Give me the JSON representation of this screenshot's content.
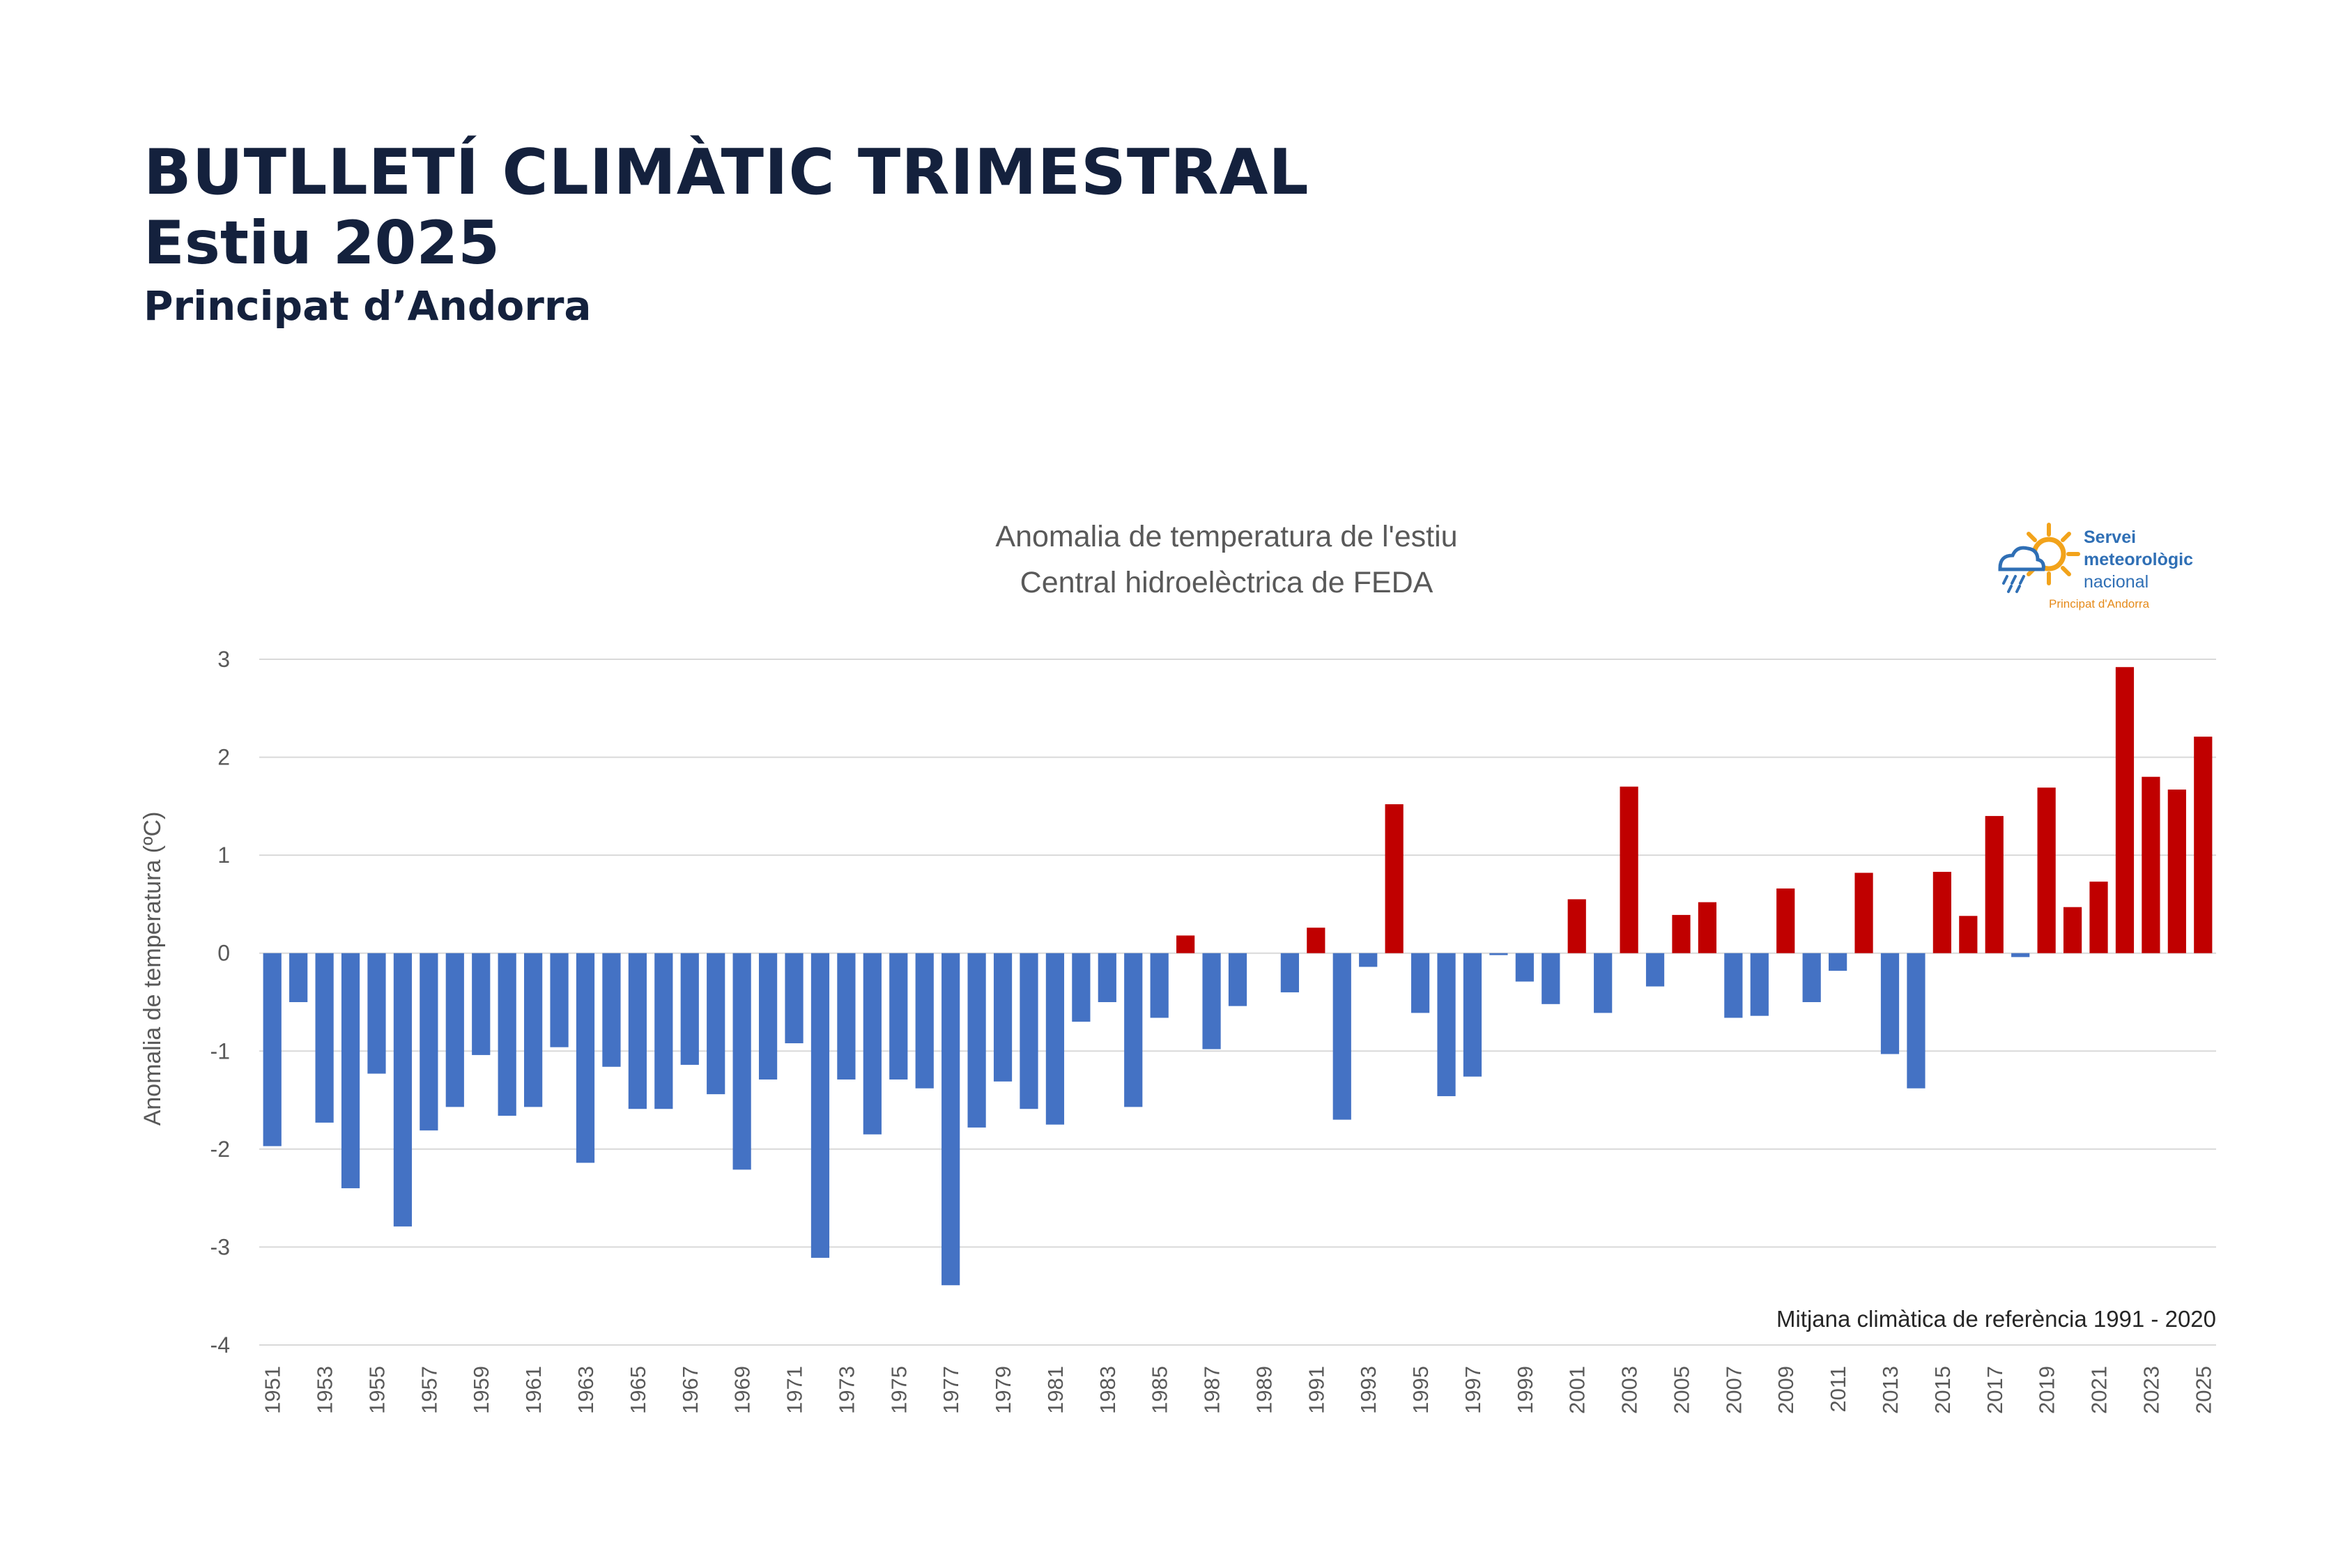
{
  "header": {
    "title": "BUTLLETÍ CLIMÀTIC TRIMESTRAL",
    "season": "Estiu 2025",
    "country": "Principat d’Andorra"
  },
  "logo": {
    "line1": "Servei",
    "line2": "meteorològic",
    "line3": "nacional",
    "subtitle": "Principat d'Andorra",
    "icon": "sun-cloud-rain-icon"
  },
  "colors": {
    "negative": "#4472c4",
    "positive": "#c00000",
    "header": "#14213d"
  },
  "chart_data": {
    "type": "bar",
    "title": "Anomalia de temperatura de l'estiu",
    "subtitle": "Central hidroelèctrica de FEDA",
    "ylabel": "Anomalia de temperatura (ºC)",
    "xlabel": "",
    "ylim": [
      -4,
      3
    ],
    "yticks": [
      3,
      2,
      1,
      0,
      -1,
      -2,
      -3,
      -4
    ],
    "grid": true,
    "note": "Mitjana climàtica de referència 1991 - 2020",
    "x_tick_labels": [
      "1951",
      "1953",
      "1955",
      "1957",
      "1959",
      "1961",
      "1963",
      "1965",
      "1967",
      "1969",
      "1971",
      "1973",
      "1975",
      "1977",
      "1979",
      "1981",
      "1983",
      "1985",
      "1987",
      "1989",
      "1991",
      "1993",
      "1995",
      "1997",
      "1999",
      "2001",
      "2003",
      "2005",
      "2007",
      "2009",
      "2011",
      "2013",
      "2015",
      "2017",
      "2019",
      "2021",
      "2023",
      "2025"
    ],
    "categories": [
      1951,
      1952,
      1953,
      1954,
      1955,
      1956,
      1957,
      1958,
      1959,
      1960,
      1961,
      1962,
      1963,
      1964,
      1965,
      1966,
      1967,
      1968,
      1969,
      1970,
      1971,
      1972,
      1973,
      1974,
      1975,
      1976,
      1977,
      1978,
      1979,
      1980,
      1981,
      1982,
      1983,
      1984,
      1985,
      1986,
      1987,
      1988,
      1989,
      1990,
      1991,
      1992,
      1993,
      1994,
      1995,
      1996,
      1997,
      1998,
      1999,
      2000,
      2001,
      2002,
      2003,
      2004,
      2005,
      2006,
      2007,
      2008,
      2009,
      2010,
      2011,
      2012,
      2013,
      2014,
      2015,
      2016,
      2017,
      2018,
      2019,
      2020,
      2021,
      2022,
      2023,
      2024,
      2025
    ],
    "values": [
      -1.97,
      -0.5,
      -1.73,
      -2.4,
      -1.23,
      -2.79,
      -1.81,
      -1.57,
      -1.04,
      -1.66,
      -1.57,
      -0.96,
      -2.14,
      -1.16,
      -1.59,
      -1.59,
      -1.14,
      -1.44,
      -2.21,
      -1.29,
      -0.92,
      -3.11,
      -1.29,
      -1.85,
      -1.29,
      -1.38,
      -3.39,
      -1.78,
      -1.31,
      -1.59,
      -1.75,
      -0.7,
      -0.5,
      -1.57,
      -0.66,
      0.18,
      -0.98,
      -0.54,
      0.0,
      -0.4,
      0.26,
      -1.7,
      -0.14,
      1.52,
      -0.61,
      -1.46,
      -1.26,
      -0.02,
      -0.29,
      -0.52,
      0.55,
      -0.61,
      1.7,
      -0.34,
      0.39,
      0.52,
      -0.66,
      -0.64,
      0.66,
      -0.5,
      -0.18,
      0.82,
      -1.03,
      -1.38,
      0.83,
      0.38,
      1.4,
      -0.04,
      1.69,
      0.47,
      0.73,
      2.92,
      1.8,
      1.67,
      2.21
    ]
  }
}
